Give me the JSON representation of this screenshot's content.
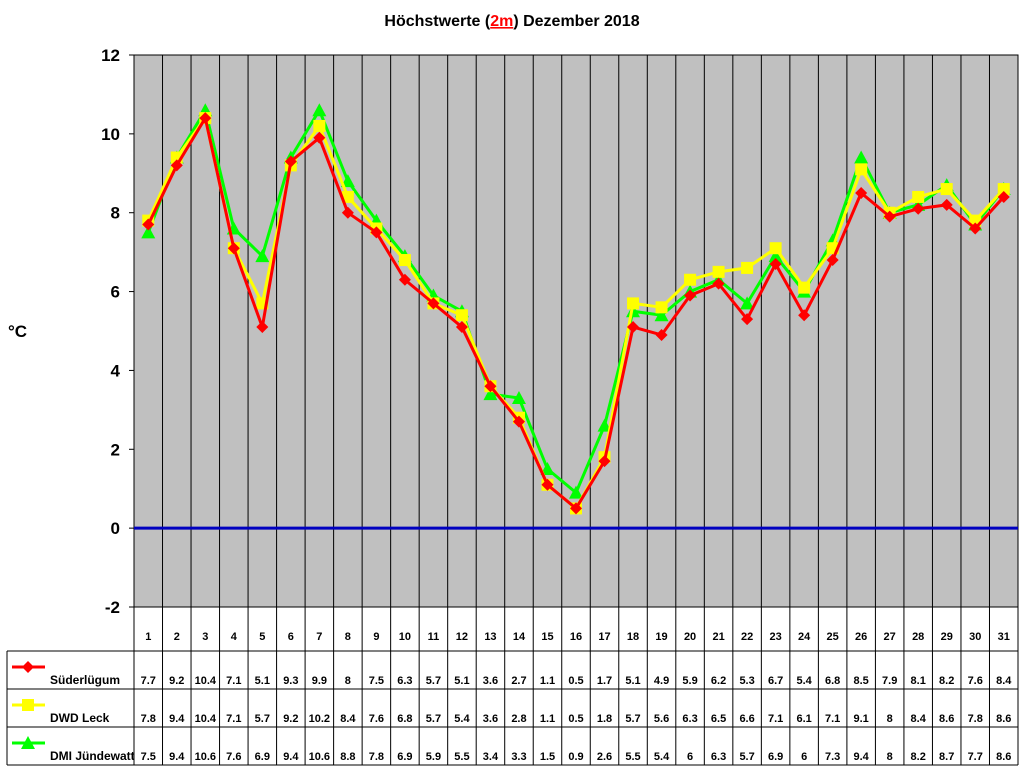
{
  "chart_data": {
    "type": "line",
    "title": {
      "prefix": "Höchstwerte (",
      "highlight": "2m",
      "suffix": ") Dezember 2018"
    },
    "ylabel": "°C",
    "xlabel": "",
    "ylim": [
      -2,
      12
    ],
    "yticks": [
      -2,
      0,
      2,
      4,
      6,
      8,
      10,
      12
    ],
    "grid": true,
    "zero_line_color": "#0000c0",
    "plot_background": "#c0c0c0",
    "legend": "bottom-left data table",
    "categories": [
      "1",
      "2",
      "3",
      "4",
      "5",
      "6",
      "7",
      "8",
      "9",
      "10",
      "11",
      "12",
      "13",
      "14",
      "15",
      "16",
      "17",
      "18",
      "19",
      "20",
      "21",
      "22",
      "23",
      "24",
      "25",
      "26",
      "27",
      "28",
      "29",
      "30",
      "31"
    ],
    "series": [
      {
        "name": "Süderlügum",
        "color": "#ff0000",
        "marker": "diamond",
        "values": [
          7.7,
          9.2,
          10.4,
          7.1,
          5.1,
          9.3,
          9.9,
          8,
          7.5,
          6.3,
          5.7,
          5.1,
          3.6,
          2.7,
          1.1,
          0.5,
          1.7,
          5.1,
          4.9,
          5.9,
          6.2,
          5.3,
          6.7,
          5.4,
          6.8,
          8.5,
          7.9,
          8.1,
          8.2,
          7.6,
          8.4
        ]
      },
      {
        "name": "DWD Leck",
        "color": "#ffff00",
        "marker": "square",
        "values": [
          7.8,
          9.4,
          10.4,
          7.1,
          5.7,
          9.2,
          10.2,
          8.4,
          7.6,
          6.8,
          5.7,
          5.4,
          3.6,
          2.8,
          1.1,
          0.5,
          1.8,
          5.7,
          5.6,
          6.3,
          6.5,
          6.6,
          7.1,
          6.1,
          7.1,
          9.1,
          8,
          8.4,
          8.6,
          7.8,
          8.6
        ]
      },
      {
        "name": "DMI Jündewatt",
        "color": "#00ff00",
        "marker": "triangle",
        "values": [
          7.5,
          9.4,
          10.6,
          7.6,
          6.9,
          9.4,
          10.6,
          8.8,
          7.8,
          6.9,
          5.9,
          5.5,
          3.4,
          3.3,
          1.5,
          0.9,
          2.6,
          5.5,
          5.4,
          6,
          6.3,
          5.7,
          6.9,
          6,
          7.3,
          9.4,
          8,
          8.2,
          8.7,
          7.7,
          8.6
        ]
      }
    ]
  }
}
